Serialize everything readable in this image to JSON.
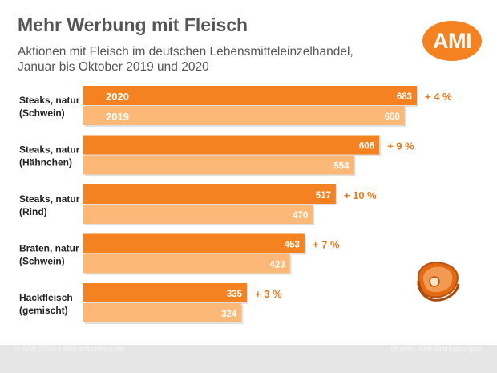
{
  "header": {
    "title": "Mehr Werbung mit Fleisch",
    "subtitle": "Aktionen mit Fleisch im deutschen Lebensmitteleinzelhandel, Januar bis Oktober 2019 und 2020"
  },
  "logo": {
    "text": "AMI"
  },
  "footer": {
    "left": "© AMI 2020 | AMI-informiert.de",
    "right": "Quelle: AMI-Marktanalyse"
  },
  "colors": {
    "bar_2020": "#f58220",
    "bar_2019": "#fbb877",
    "change_text": "#e8791d",
    "label_text": "#222222",
    "accent": "#f58220"
  },
  "chart_data": {
    "type": "bar",
    "orientation": "horizontal",
    "categories": [
      [
        "Steaks, natur",
        "(Schwein)"
      ],
      [
        "Steaks, natur",
        "(Hähnchen)"
      ],
      [
        "Steaks, natur",
        "(Rind)"
      ],
      [
        "Braten, natur",
        "(Schwein)"
      ],
      [
        "Hackfleisch",
        "(gemischt)"
      ]
    ],
    "series": [
      {
        "name": "2020",
        "values": [
          683,
          606,
          517,
          453,
          335
        ]
      },
      {
        "name": "2019",
        "values": [
          658,
          554,
          470,
          423,
          324
        ]
      }
    ],
    "change_labels": [
      "+ 4 %",
      "+ 9 %",
      "+ 10 %",
      "+ 7 %",
      "+ 3 %"
    ],
    "legend_inside_first_group": true,
    "xlim": [
      0,
      683
    ]
  }
}
